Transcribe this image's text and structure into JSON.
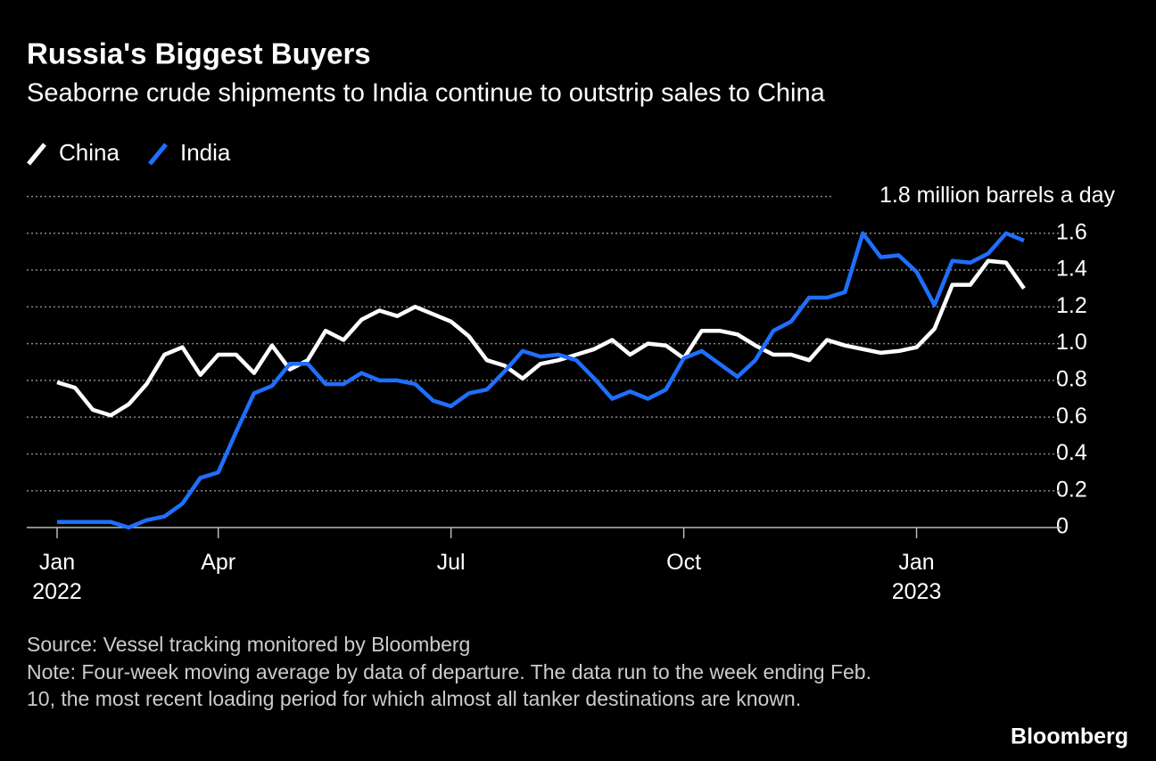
{
  "chart_data": {
    "type": "line",
    "title": "Russia's Biggest Buyers",
    "subtitle": "Seaborne crude shipments to India continue to outstrip sales to China",
    "categories": [
      "Jan 2022",
      null,
      null,
      null,
      null,
      null,
      null,
      null,
      null,
      "Apr",
      null,
      null,
      null,
      null,
      null,
      null,
      null,
      null,
      null,
      null,
      null,
      null,
      "Jul",
      null,
      null,
      null,
      null,
      null,
      null,
      null,
      null,
      null,
      null,
      null,
      null,
      "Oct",
      null,
      null,
      null,
      null,
      null,
      null,
      null,
      null,
      null,
      null,
      null,
      null,
      "Jan 2023",
      null,
      null,
      null,
      null,
      null,
      null
    ],
    "series": [
      {
        "name": "China",
        "color": "#ffffff",
        "values": [
          0.79,
          0.76,
          0.64,
          0.61,
          0.67,
          0.78,
          0.94,
          0.98,
          0.83,
          0.94,
          0.94,
          0.84,
          0.99,
          0.86,
          0.91,
          1.07,
          1.02,
          1.13,
          1.18,
          1.15,
          1.2,
          1.16,
          1.12,
          1.04,
          0.91,
          0.88,
          0.81,
          0.89,
          0.91,
          0.94,
          0.97,
          1.02,
          0.94,
          1.0,
          0.99,
          0.92,
          1.07,
          1.07,
          1.05,
          0.99,
          0.94,
          0.94,
          0.91,
          1.02,
          0.99,
          0.97,
          0.95,
          0.96,
          0.98,
          1.08,
          1.32,
          1.32,
          1.45,
          1.44,
          1.3
        ]
      },
      {
        "name": "India",
        "color": "#1f6fff",
        "values": [
          0.03,
          0.03,
          0.03,
          0.03,
          0.0,
          0.04,
          0.06,
          0.13,
          0.27,
          0.3,
          0.52,
          0.73,
          0.77,
          0.89,
          0.89,
          0.78,
          0.78,
          0.84,
          0.8,
          0.8,
          0.78,
          0.69,
          0.66,
          0.73,
          0.75,
          0.85,
          0.96,
          0.93,
          0.94,
          0.91,
          0.81,
          0.7,
          0.74,
          0.7,
          0.75,
          0.92,
          0.96,
          0.89,
          0.82,
          0.91,
          1.07,
          1.12,
          1.25,
          1.25,
          1.28,
          1.6,
          1.47,
          1.48,
          1.39,
          1.21,
          1.45,
          1.44,
          1.49,
          1.6,
          1.56
        ]
      }
    ],
    "ylim": [
      0,
      1.8
    ],
    "yticks": [
      0,
      0.2,
      0.4,
      0.6,
      0.8,
      {
        "value": 1,
        "label": "1.0"
      },
      1.2,
      1.4,
      1.6,
      {
        "value": 1.8,
        "label": "1.8 million barrels a day"
      }
    ],
    "grid": true,
    "source": "Source: Vessel tracking monitored by Bloomberg",
    "note": "Note: Four-week moving average by data of departure. The data run to the week ending Feb. 10, the most recent loading period for which almost all tanker destinations are known.",
    "brand": "Bloomberg"
  }
}
